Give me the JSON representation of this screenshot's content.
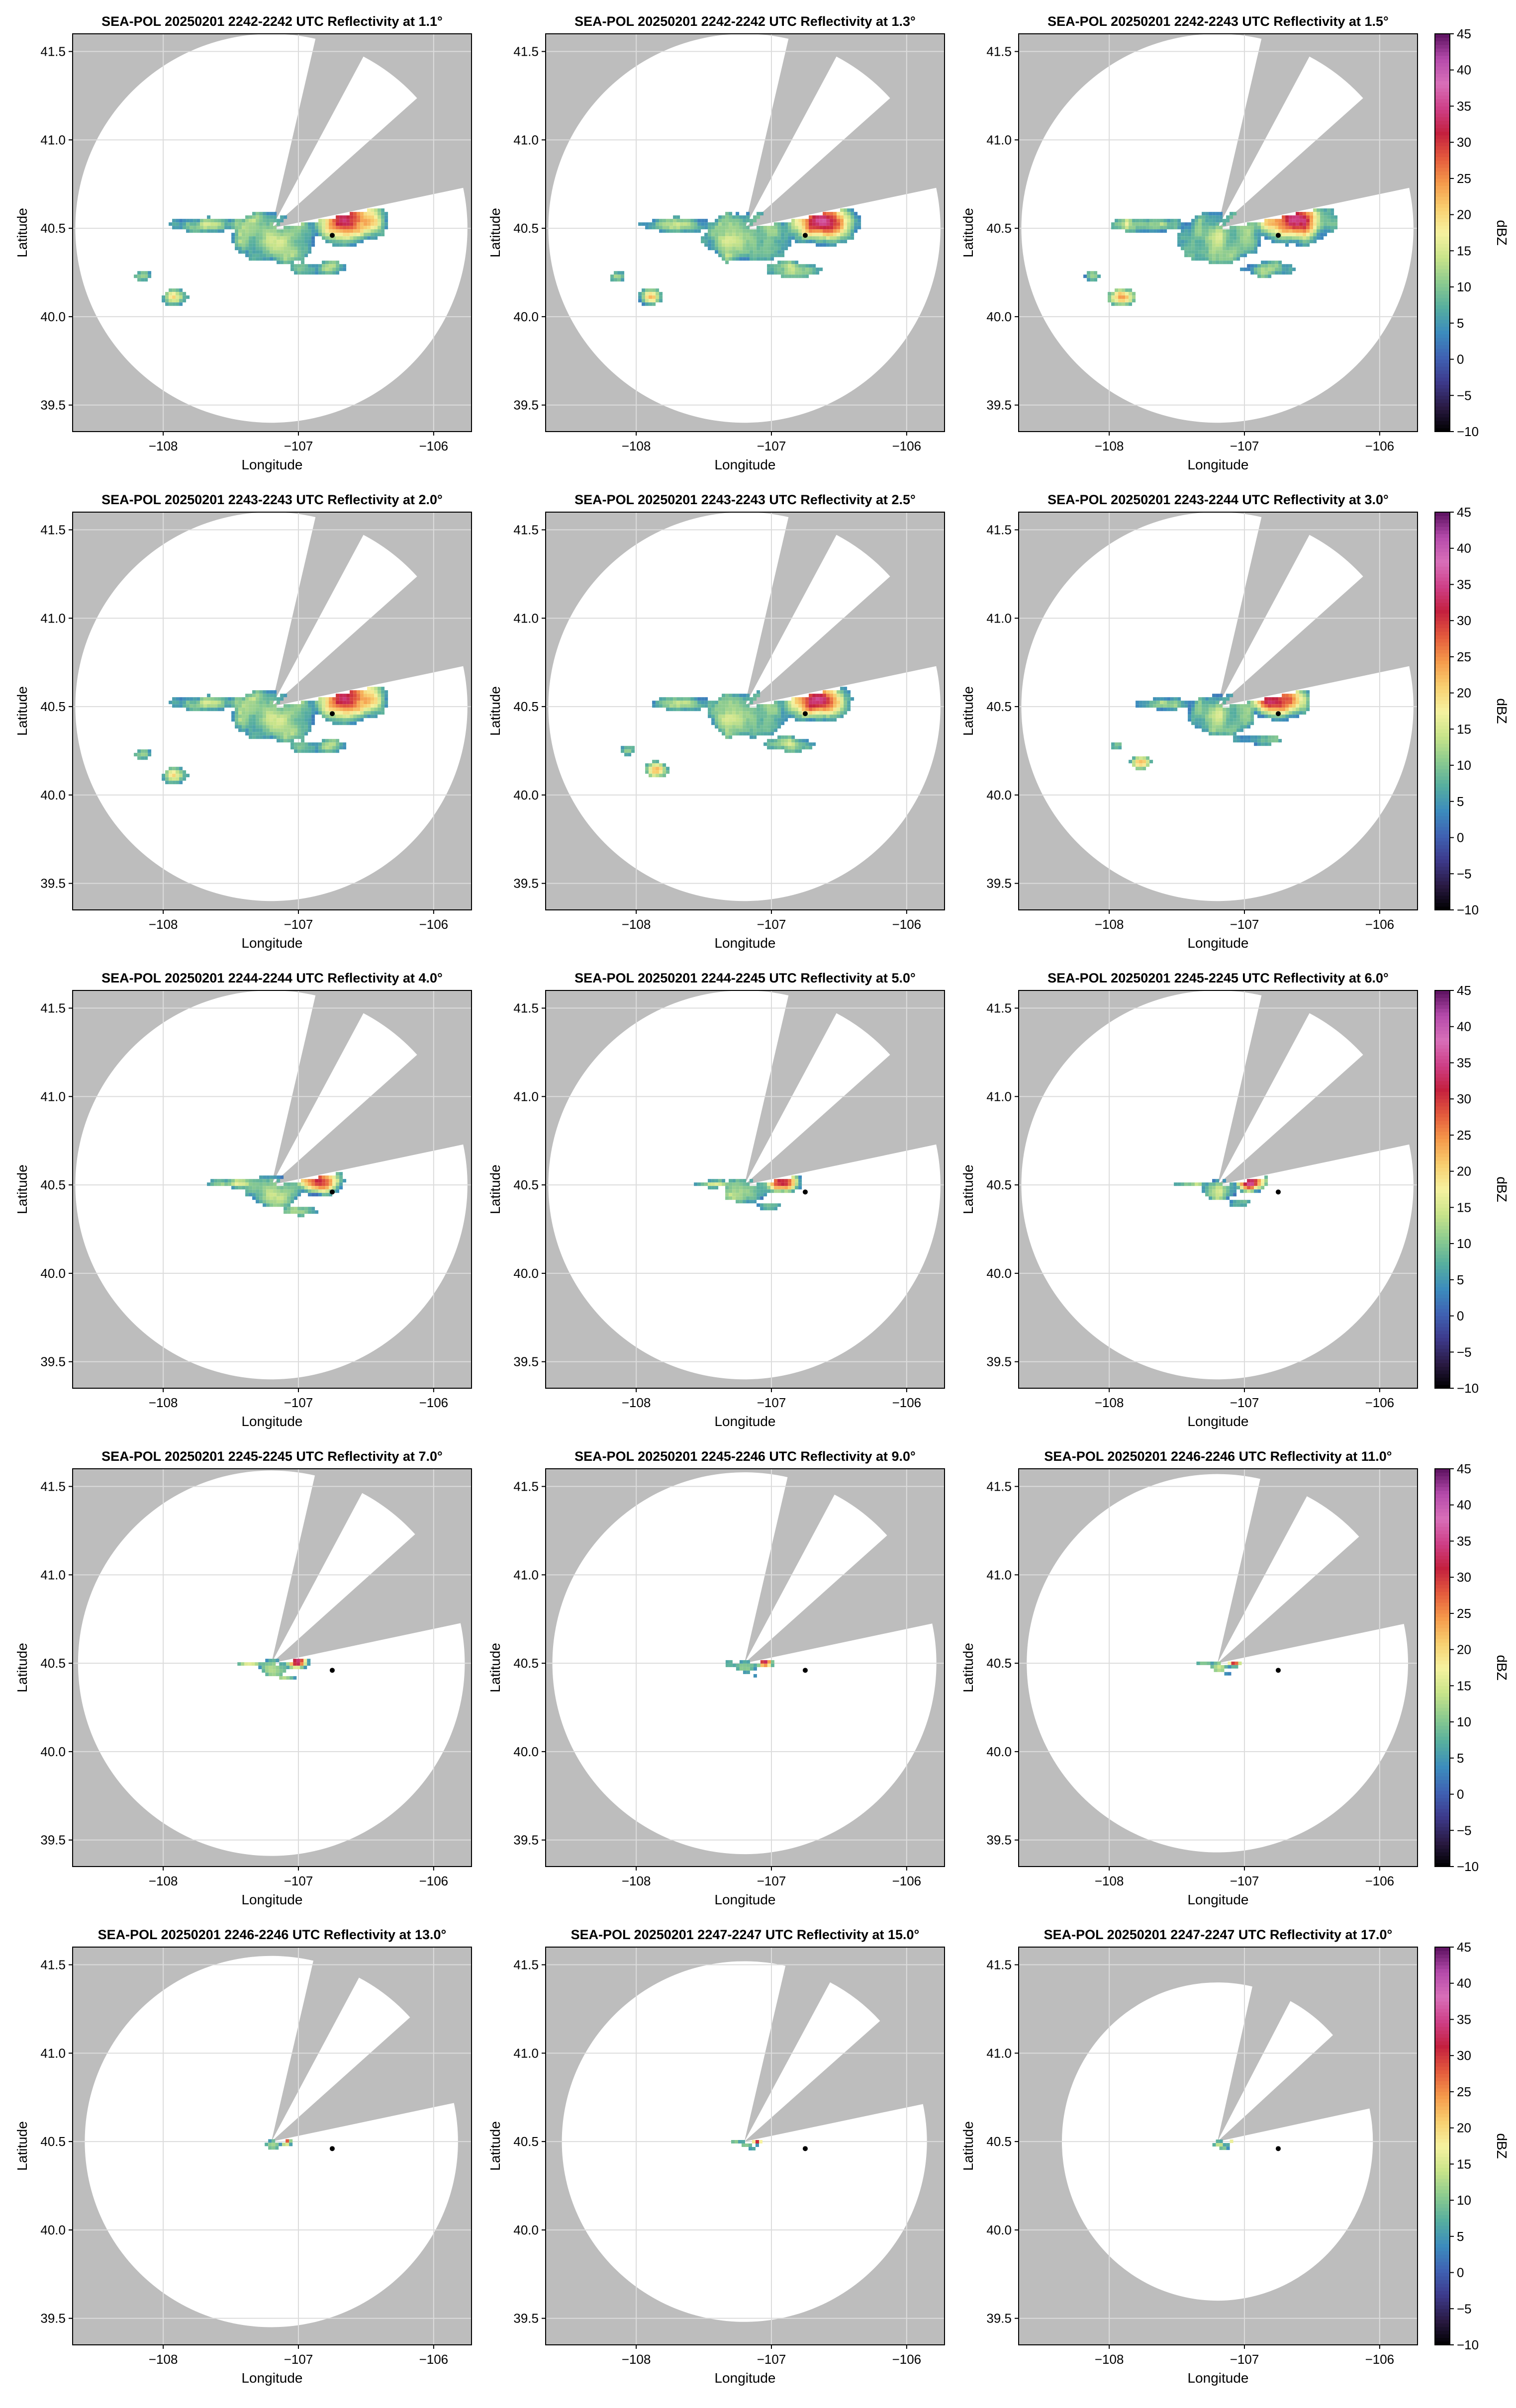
{
  "figure": {
    "xlabel": "Longitude",
    "ylabel": "Latitude",
    "colorbar_label": "dBZ",
    "x_ticks": [
      -108,
      -107,
      -106
    ],
    "x_tick_labels": [
      "−108",
      "−107",
      "−106"
    ],
    "y_ticks": [
      39.5,
      40.0,
      40.5,
      41.0,
      41.5
    ],
    "y_tick_labels": [
      "39.5",
      "40.0",
      "40.5",
      "41.0",
      "41.5"
    ],
    "colorbar_ticks": [
      -10,
      -5,
      0,
      5,
      10,
      15,
      20,
      25,
      30,
      35,
      40,
      45
    ],
    "colorbar_tick_labels": [
      "−10",
      "−5",
      "0",
      "5",
      "10",
      "15",
      "20",
      "25",
      "30",
      "35",
      "40",
      "45"
    ],
    "colors": {
      "background": "#bdbdbd",
      "coverage": "#ffffff",
      "grid": "#dcdcdc",
      "text": "#000000"
    }
  },
  "chart_data": [
    {
      "type": "heatmap",
      "title": "SEA-POL 20250201 2242-2242 UTC Reflectivity at 1.1°",
      "elevation_deg": 1.1,
      "xlim": [
        -108.67,
        -105.72
      ],
      "ylim": [
        39.35,
        41.6
      ],
      "radar_site": [
        -107.2,
        40.5
      ],
      "marker_point": [
        -106.75,
        40.46
      ],
      "max_range_lon_deg": 1.45,
      "max_range_lat_deg": 1.1,
      "blocked_sectors_deg": [
        [
          13,
          28
        ],
        [
          48,
          78
        ]
      ],
      "echo_extent_scale": 1.0,
      "colorbar": false
    },
    {
      "type": "heatmap",
      "title": "SEA-POL 20250201 2242-2242 UTC Reflectivity at 1.3°",
      "elevation_deg": 1.3,
      "xlim": [
        -108.67,
        -105.72
      ],
      "ylim": [
        39.35,
        41.6
      ],
      "radar_site": [
        -107.2,
        40.5
      ],
      "marker_point": [
        -106.75,
        40.46
      ],
      "max_range_lon_deg": 1.45,
      "max_range_lat_deg": 1.1,
      "blocked_sectors_deg": [
        [
          13,
          28
        ],
        [
          48,
          78
        ]
      ],
      "echo_extent_scale": 1.0,
      "colorbar": false
    },
    {
      "type": "heatmap",
      "title": "SEA-POL 20250201 2242-2243 UTC Reflectivity at 1.5°",
      "elevation_deg": 1.5,
      "xlim": [
        -108.67,
        -105.72
      ],
      "ylim": [
        39.35,
        41.6
      ],
      "radar_site": [
        -107.2,
        40.5
      ],
      "marker_point": [
        -106.75,
        40.46
      ],
      "max_range_lon_deg": 1.45,
      "max_range_lat_deg": 1.1,
      "blocked_sectors_deg": [
        [
          13,
          28
        ],
        [
          48,
          78
        ]
      ],
      "echo_extent_scale": 1.0,
      "colorbar": true
    },
    {
      "type": "heatmap",
      "title": "SEA-POL 20250201 2243-2243 UTC Reflectivity at 2.0°",
      "elevation_deg": 2.0,
      "xlim": [
        -108.67,
        -105.72
      ],
      "ylim": [
        39.35,
        41.6
      ],
      "radar_site": [
        -107.2,
        40.5
      ],
      "marker_point": [
        -106.75,
        40.46
      ],
      "max_range_lon_deg": 1.45,
      "max_range_lat_deg": 1.1,
      "blocked_sectors_deg": [
        [
          13,
          28
        ],
        [
          48,
          78
        ]
      ],
      "echo_extent_scale": 1.0,
      "colorbar": false
    },
    {
      "type": "heatmap",
      "title": "SEA-POL 20250201 2243-2243 UTC Reflectivity at 2.5°",
      "elevation_deg": 2.5,
      "xlim": [
        -108.67,
        -105.72
      ],
      "ylim": [
        39.35,
        41.6
      ],
      "radar_site": [
        -107.2,
        40.5
      ],
      "marker_point": [
        -106.75,
        40.46
      ],
      "max_range_lon_deg": 1.45,
      "max_range_lat_deg": 1.1,
      "blocked_sectors_deg": [
        [
          13,
          28
        ],
        [
          48,
          78
        ]
      ],
      "echo_extent_scale": 0.92,
      "colorbar": false
    },
    {
      "type": "heatmap",
      "title": "SEA-POL 20250201 2243-2244 UTC Reflectivity at 3.0°",
      "elevation_deg": 3.0,
      "xlim": [
        -108.67,
        -105.72
      ],
      "ylim": [
        39.35,
        41.6
      ],
      "radar_site": [
        -107.2,
        40.5
      ],
      "marker_point": [
        -106.75,
        40.46
      ],
      "max_range_lon_deg": 1.45,
      "max_range_lat_deg": 1.1,
      "blocked_sectors_deg": [
        [
          13,
          28
        ],
        [
          48,
          78
        ]
      ],
      "echo_extent_scale": 0.8,
      "colorbar": true
    },
    {
      "type": "heatmap",
      "title": "SEA-POL 20250201 2244-2244 UTC Reflectivity at 4.0°",
      "elevation_deg": 4.0,
      "xlim": [
        -108.67,
        -105.72
      ],
      "ylim": [
        39.35,
        41.6
      ],
      "radar_site": [
        -107.2,
        40.5
      ],
      "marker_point": [
        -106.75,
        40.46
      ],
      "max_range_lon_deg": 1.45,
      "max_range_lat_deg": 1.1,
      "blocked_sectors_deg": [
        [
          13,
          28
        ],
        [
          48,
          78
        ]
      ],
      "echo_extent_scale": 0.62,
      "colorbar": false
    },
    {
      "type": "heatmap",
      "title": "SEA-POL 20250201 2244-2245 UTC Reflectivity at 5.0°",
      "elevation_deg": 5.0,
      "xlim": [
        -108.67,
        -105.72
      ],
      "ylim": [
        39.35,
        41.6
      ],
      "radar_site": [
        -107.2,
        40.5
      ],
      "marker_point": [
        -106.75,
        40.46
      ],
      "max_range_lon_deg": 1.45,
      "max_range_lat_deg": 1.1,
      "blocked_sectors_deg": [
        [
          13,
          28
        ],
        [
          48,
          78
        ]
      ],
      "echo_extent_scale": 0.5,
      "colorbar": false
    },
    {
      "type": "heatmap",
      "title": "SEA-POL 20250201 2245-2245 UTC Reflectivity at 6.0°",
      "elevation_deg": 6.0,
      "xlim": [
        -108.67,
        -105.72
      ],
      "ylim": [
        39.35,
        41.6
      ],
      "radar_site": [
        -107.2,
        40.5
      ],
      "marker_point": [
        -106.75,
        40.46
      ],
      "max_range_lon_deg": 1.45,
      "max_range_lat_deg": 1.1,
      "blocked_sectors_deg": [
        [
          13,
          28
        ],
        [
          48,
          78
        ]
      ],
      "echo_extent_scale": 0.42,
      "colorbar": true
    },
    {
      "type": "heatmap",
      "title": "SEA-POL 20250201 2245-2245 UTC Reflectivity at 7.0°",
      "elevation_deg": 7.0,
      "xlim": [
        -108.67,
        -105.72
      ],
      "ylim": [
        39.35,
        41.6
      ],
      "radar_site": [
        -107.2,
        40.5
      ],
      "marker_point": [
        -106.75,
        40.46
      ],
      "max_range_lon_deg": 1.43,
      "max_range_lat_deg": 1.09,
      "blocked_sectors_deg": [
        [
          13,
          28
        ],
        [
          48,
          78
        ]
      ],
      "echo_extent_scale": 0.32,
      "colorbar": false
    },
    {
      "type": "heatmap",
      "title": "SEA-POL 20250201 2245-2246 UTC Reflectivity at 9.0°",
      "elevation_deg": 9.0,
      "xlim": [
        -108.67,
        -105.72
      ],
      "ylim": [
        39.35,
        41.6
      ],
      "radar_site": [
        -107.2,
        40.5
      ],
      "marker_point": [
        -106.75,
        40.46
      ],
      "max_range_lon_deg": 1.42,
      "max_range_lat_deg": 1.08,
      "blocked_sectors_deg": [
        [
          13,
          28
        ],
        [
          48,
          78
        ]
      ],
      "echo_extent_scale": 0.24,
      "colorbar": false
    },
    {
      "type": "heatmap",
      "title": "SEA-POL 20250201 2246-2246 UTC Reflectivity at 11.0°",
      "elevation_deg": 11.0,
      "xlim": [
        -108.67,
        -105.72
      ],
      "ylim": [
        39.35,
        41.6
      ],
      "radar_site": [
        -107.2,
        40.5
      ],
      "marker_point": [
        -106.75,
        40.46
      ],
      "max_range_lon_deg": 1.41,
      "max_range_lat_deg": 1.07,
      "blocked_sectors_deg": [
        [
          13,
          28
        ],
        [
          48,
          78
        ]
      ],
      "echo_extent_scale": 0.2,
      "colorbar": true
    },
    {
      "type": "heatmap",
      "title": "SEA-POL 20250201 2246-2246 UTC Reflectivity at 13.0°",
      "elevation_deg": 13.0,
      "xlim": [
        -108.67,
        -105.72
      ],
      "ylim": [
        39.35,
        41.6
      ],
      "radar_site": [
        -107.2,
        40.5
      ],
      "marker_point": [
        -106.75,
        40.46
      ],
      "max_range_lon_deg": 1.38,
      "max_range_lat_deg": 1.05,
      "blocked_sectors_deg": [
        [
          13,
          28
        ],
        [
          48,
          78
        ]
      ],
      "echo_extent_scale": 0.17,
      "colorbar": false
    },
    {
      "type": "heatmap",
      "title": "SEA-POL 20250201 2247-2247 UTC Reflectivity at 15.0°",
      "elevation_deg": 15.0,
      "xlim": [
        -108.67,
        -105.72
      ],
      "ylim": [
        39.35,
        41.6
      ],
      "radar_site": [
        -107.2,
        40.5
      ],
      "marker_point": [
        -106.75,
        40.46
      ],
      "max_range_lon_deg": 1.35,
      "max_range_lat_deg": 1.02,
      "blocked_sectors_deg": [
        [
          13,
          28
        ],
        [
          48,
          78
        ]
      ],
      "echo_extent_scale": 0.15,
      "colorbar": false
    },
    {
      "type": "heatmap",
      "title": "SEA-POL 20250201 2247-2247 UTC Reflectivity at 17.0°",
      "elevation_deg": 17.0,
      "xlim": [
        -108.67,
        -105.72
      ],
      "ylim": [
        39.35,
        41.6
      ],
      "radar_site": [
        -107.2,
        40.5
      ],
      "marker_point": [
        -106.75,
        40.46
      ],
      "max_range_lon_deg": 1.15,
      "max_range_lat_deg": 0.9,
      "blocked_sectors_deg": [
        [
          13,
          28
        ],
        [
          48,
          78
        ]
      ],
      "echo_extent_scale": 0.13,
      "colorbar": true
    }
  ],
  "colorscale": {
    "range": [
      -10,
      45
    ],
    "stops": [
      "#000000",
      "#2a1a44",
      "#3d3a8c",
      "#3f62b3",
      "#3c8cbd",
      "#56ae9f",
      "#8ccb8f",
      "#c9e48a",
      "#f6f2a0",
      "#f8cf6f",
      "#f59a4b",
      "#e45b3d",
      "#c4203e",
      "#ce3f87",
      "#d86fb9",
      "#b54aab",
      "#5c1160"
    ]
  }
}
